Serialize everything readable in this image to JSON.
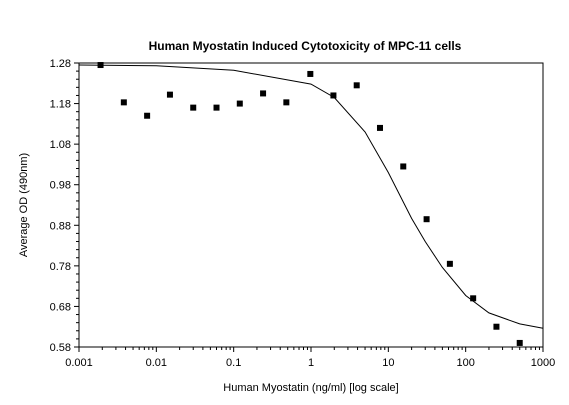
{
  "chart_data": {
    "type": "scatter",
    "title": "Human Myostatin Induced Cytotoxicity of MPC-11 cells",
    "xlabel": "Human Myostatin (ng/ml) [log scale]",
    "ylabel": "Average OD (490nm)",
    "x_scale": "log",
    "xlim": [
      0.001,
      1000
    ],
    "ylim": [
      0.58,
      1.28
    ],
    "x_ticks": [
      "0.001",
      "0.01",
      "0.1",
      "1",
      "10",
      "100",
      "1000"
    ],
    "y_ticks": [
      "0.58",
      "0.68",
      "0.78",
      "0.88",
      "0.98",
      "1.08",
      "1.18",
      "1.28"
    ],
    "grid": false,
    "legend": "none",
    "series": [
      {
        "type": "scatter",
        "marker": "square",
        "x": [
          0.0019,
          0.0038,
          0.0076,
          0.015,
          0.03,
          0.06,
          0.12,
          0.24,
          0.48,
          0.98,
          1.95,
          3.9,
          7.8,
          15.6,
          31.25,
          62.5,
          125,
          250,
          500
        ],
        "y": [
          1.275,
          1.183,
          1.15,
          1.202,
          1.17,
          1.17,
          1.18,
          1.205,
          1.183,
          1.253,
          1.2,
          1.225,
          1.12,
          1.025,
          0.895,
          0.785,
          0.7,
          0.63,
          0.59
        ]
      },
      {
        "type": "line",
        "x": [
          0.001,
          0.01,
          0.1,
          1,
          2,
          5,
          10,
          20,
          30,
          50,
          100,
          200,
          500,
          1000
        ],
        "y": [
          1.275,
          1.273,
          1.262,
          1.228,
          1.195,
          1.11,
          1.01,
          0.897,
          0.84,
          0.776,
          0.707,
          0.664,
          0.637,
          0.626
        ]
      }
    ]
  }
}
